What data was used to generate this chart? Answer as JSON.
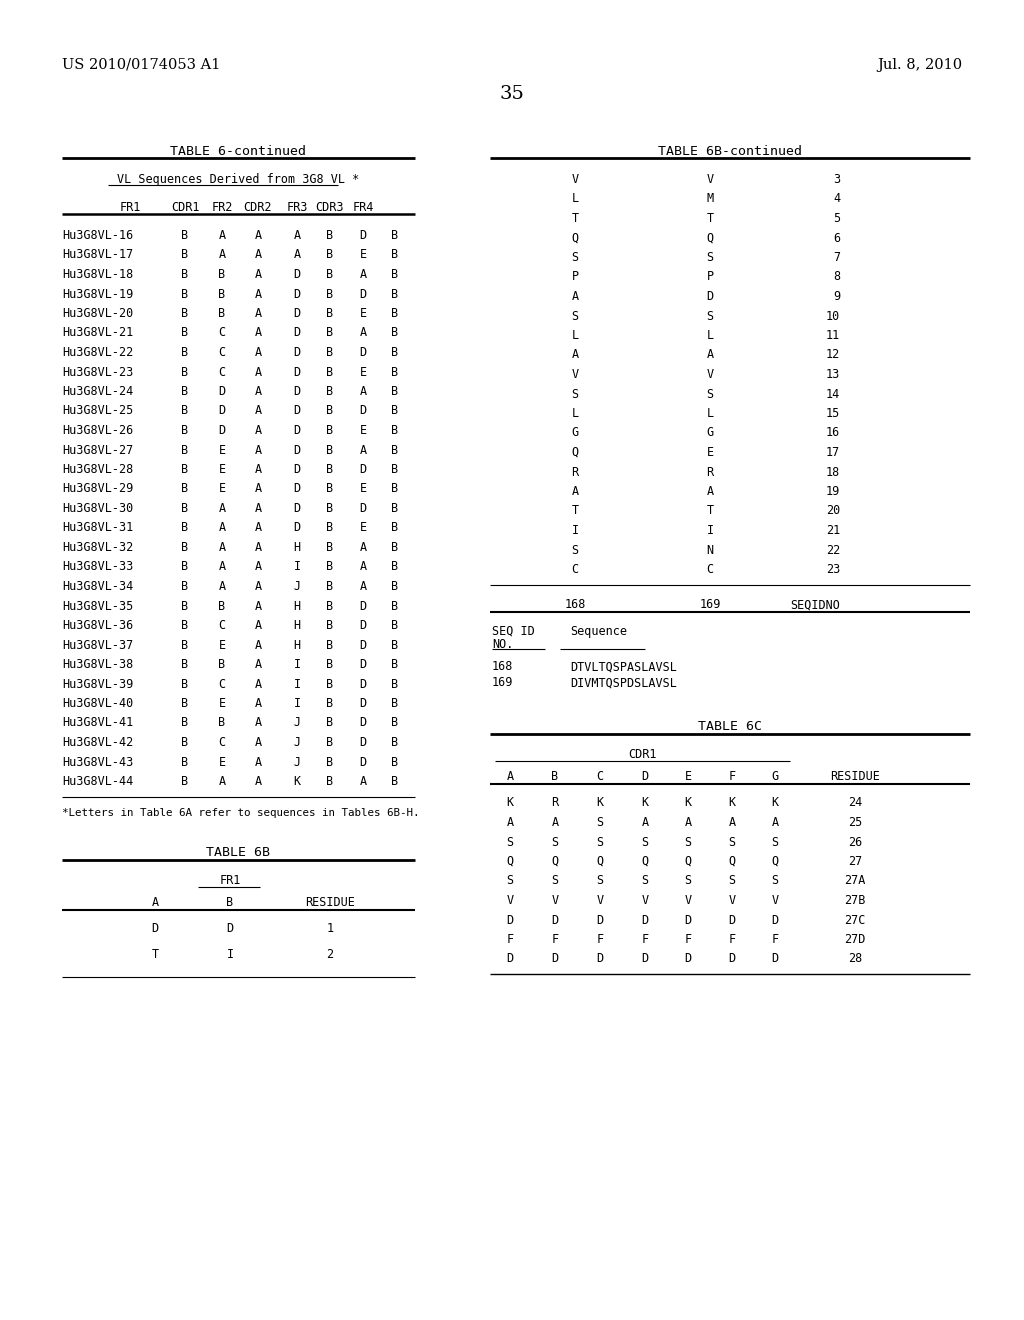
{
  "patent_left": "US 2010/0174053 A1",
  "patent_right": "Jul. 8, 2010",
  "page_num": "35",
  "table6_title": "TABLE 6-continued",
  "table6_subtitle": "VL Sequences Derived from 3G8 VL *",
  "table6_headers": [
    "FR1",
    "CDR1",
    "FR2",
    "CDR2",
    "FR3",
    "CDR3",
    "FR4"
  ],
  "table6_rows": [
    [
      "Hu3G8VL-16",
      "B",
      "A",
      "A",
      "A",
      "B",
      "D",
      "B"
    ],
    [
      "Hu3G8VL-17",
      "B",
      "A",
      "A",
      "A",
      "B",
      "E",
      "B"
    ],
    [
      "Hu3G8VL-18",
      "B",
      "B",
      "A",
      "D",
      "B",
      "A",
      "B"
    ],
    [
      "Hu3G8VL-19",
      "B",
      "B",
      "A",
      "D",
      "B",
      "D",
      "B"
    ],
    [
      "Hu3G8VL-20",
      "B",
      "B",
      "A",
      "D",
      "B",
      "E",
      "B"
    ],
    [
      "Hu3G8VL-21",
      "B",
      "C",
      "A",
      "D",
      "B",
      "A",
      "B"
    ],
    [
      "Hu3G8VL-22",
      "B",
      "C",
      "A",
      "D",
      "B",
      "D",
      "B"
    ],
    [
      "Hu3G8VL-23",
      "B",
      "C",
      "A",
      "D",
      "B",
      "E",
      "B"
    ],
    [
      "Hu3G8VL-24",
      "B",
      "D",
      "A",
      "D",
      "B",
      "A",
      "B"
    ],
    [
      "Hu3G8VL-25",
      "B",
      "D",
      "A",
      "D",
      "B",
      "D",
      "B"
    ],
    [
      "Hu3G8VL-26",
      "B",
      "D",
      "A",
      "D",
      "B",
      "E",
      "B"
    ],
    [
      "Hu3G8VL-27",
      "B",
      "E",
      "A",
      "D",
      "B",
      "A",
      "B"
    ],
    [
      "Hu3G8VL-28",
      "B",
      "E",
      "A",
      "D",
      "B",
      "D",
      "B"
    ],
    [
      "Hu3G8VL-29",
      "B",
      "E",
      "A",
      "D",
      "B",
      "E",
      "B"
    ],
    [
      "Hu3G8VL-30",
      "B",
      "A",
      "A",
      "D",
      "B",
      "D",
      "B"
    ],
    [
      "Hu3G8VL-31",
      "B",
      "A",
      "A",
      "D",
      "B",
      "E",
      "B"
    ],
    [
      "Hu3G8VL-32",
      "B",
      "A",
      "A",
      "H",
      "B",
      "A",
      "B"
    ],
    [
      "Hu3G8VL-33",
      "B",
      "A",
      "A",
      "I",
      "B",
      "A",
      "B"
    ],
    [
      "Hu3G8VL-34",
      "B",
      "A",
      "A",
      "J",
      "B",
      "A",
      "B"
    ],
    [
      "Hu3G8VL-35",
      "B",
      "B",
      "A",
      "H",
      "B",
      "D",
      "B"
    ],
    [
      "Hu3G8VL-36",
      "B",
      "C",
      "A",
      "H",
      "B",
      "D",
      "B"
    ],
    [
      "Hu3G8VL-37",
      "B",
      "E",
      "A",
      "H",
      "B",
      "D",
      "B"
    ],
    [
      "Hu3G8VL-38",
      "B",
      "B",
      "A",
      "I",
      "B",
      "D",
      "B"
    ],
    [
      "Hu3G8VL-39",
      "B",
      "C",
      "A",
      "I",
      "B",
      "D",
      "B"
    ],
    [
      "Hu3G8VL-40",
      "B",
      "E",
      "A",
      "I",
      "B",
      "D",
      "B"
    ],
    [
      "Hu3G8VL-41",
      "B",
      "B",
      "A",
      "J",
      "B",
      "D",
      "B"
    ],
    [
      "Hu3G8VL-42",
      "B",
      "C",
      "A",
      "J",
      "B",
      "D",
      "B"
    ],
    [
      "Hu3G8VL-43",
      "B",
      "E",
      "A",
      "J",
      "B",
      "D",
      "B"
    ],
    [
      "Hu3G8VL-44",
      "B",
      "A",
      "A",
      "K",
      "B",
      "A",
      "B"
    ]
  ],
  "table6_footnote": "*Letters in Table 6A refer to sequences in Tables 6B-H.",
  "table6b_title": "TABLE 6B-continued",
  "table6b_col_header_row": [
    "V",
    "V",
    "3"
  ],
  "table6b_rows": [
    [
      "L",
      "M",
      "4"
    ],
    [
      "T",
      "T",
      "5"
    ],
    [
      "Q",
      "Q",
      "6"
    ],
    [
      "S",
      "S",
      "7"
    ],
    [
      "P",
      "P",
      "8"
    ],
    [
      "A",
      "D",
      "9"
    ],
    [
      "S",
      "S",
      "10"
    ],
    [
      "L",
      "L",
      "11"
    ],
    [
      "A",
      "A",
      "12"
    ],
    [
      "V",
      "V",
      "13"
    ],
    [
      "S",
      "S",
      "14"
    ],
    [
      "L",
      "L",
      "15"
    ],
    [
      "G",
      "G",
      "16"
    ],
    [
      "Q",
      "E",
      "17"
    ],
    [
      "R",
      "R",
      "18"
    ],
    [
      "A",
      "A",
      "19"
    ],
    [
      "T",
      "T",
      "20"
    ],
    [
      "I",
      "I",
      "21"
    ],
    [
      "S",
      "N",
      "22"
    ],
    [
      "C",
      "C",
      "23"
    ]
  ],
  "table6b_seqrow": [
    "168",
    "169",
    "SEQIDNO"
  ],
  "seqtable_rows": [
    [
      "168",
      "DTVLTQSPASLAVSL"
    ],
    [
      "169",
      "DIVMTQSPDSLAVSL"
    ]
  ],
  "table6c_title": "TABLE 6C",
  "table6c_subheader": "CDR1",
  "table6c_headers": [
    "A",
    "B",
    "C",
    "D",
    "E",
    "F",
    "G",
    "RESIDUE"
  ],
  "table6c_rows": [
    [
      "K",
      "R",
      "K",
      "K",
      "K",
      "K",
      "K",
      "24"
    ],
    [
      "A",
      "A",
      "S",
      "A",
      "A",
      "A",
      "A",
      "25"
    ],
    [
      "S",
      "S",
      "S",
      "S",
      "S",
      "S",
      "S",
      "26"
    ],
    [
      "Q",
      "Q",
      "Q",
      "Q",
      "Q",
      "Q",
      "Q",
      "27"
    ],
    [
      "S",
      "S",
      "S",
      "S",
      "S",
      "S",
      "S",
      "27A"
    ],
    [
      "V",
      "V",
      "V",
      "V",
      "V",
      "V",
      "V",
      "27B"
    ],
    [
      "D",
      "D",
      "D",
      "D",
      "D",
      "D",
      "D",
      "27C"
    ],
    [
      "F",
      "F",
      "F",
      "F",
      "F",
      "F",
      "F",
      "27D"
    ],
    [
      "D",
      "D",
      "D",
      "D",
      "D",
      "D",
      "D",
      "28"
    ]
  ],
  "table6b2_title": "TABLE 6B",
  "table6b2_subheader": "FR1",
  "table6b2_col_headers": [
    "A",
    "B",
    "RESIDUE"
  ],
  "table6b2_rows": [
    [
      "D",
      "D",
      "1"
    ],
    [
      "T",
      "I",
      "2"
    ]
  ],
  "bg_color": "#ffffff",
  "text_color": "#000000",
  "mono_size": 8.5,
  "title_size": 9.5,
  "header_size": 9.0,
  "footnote_size": 7.8,
  "patent_size": 10.5,
  "page_num_size": 14
}
